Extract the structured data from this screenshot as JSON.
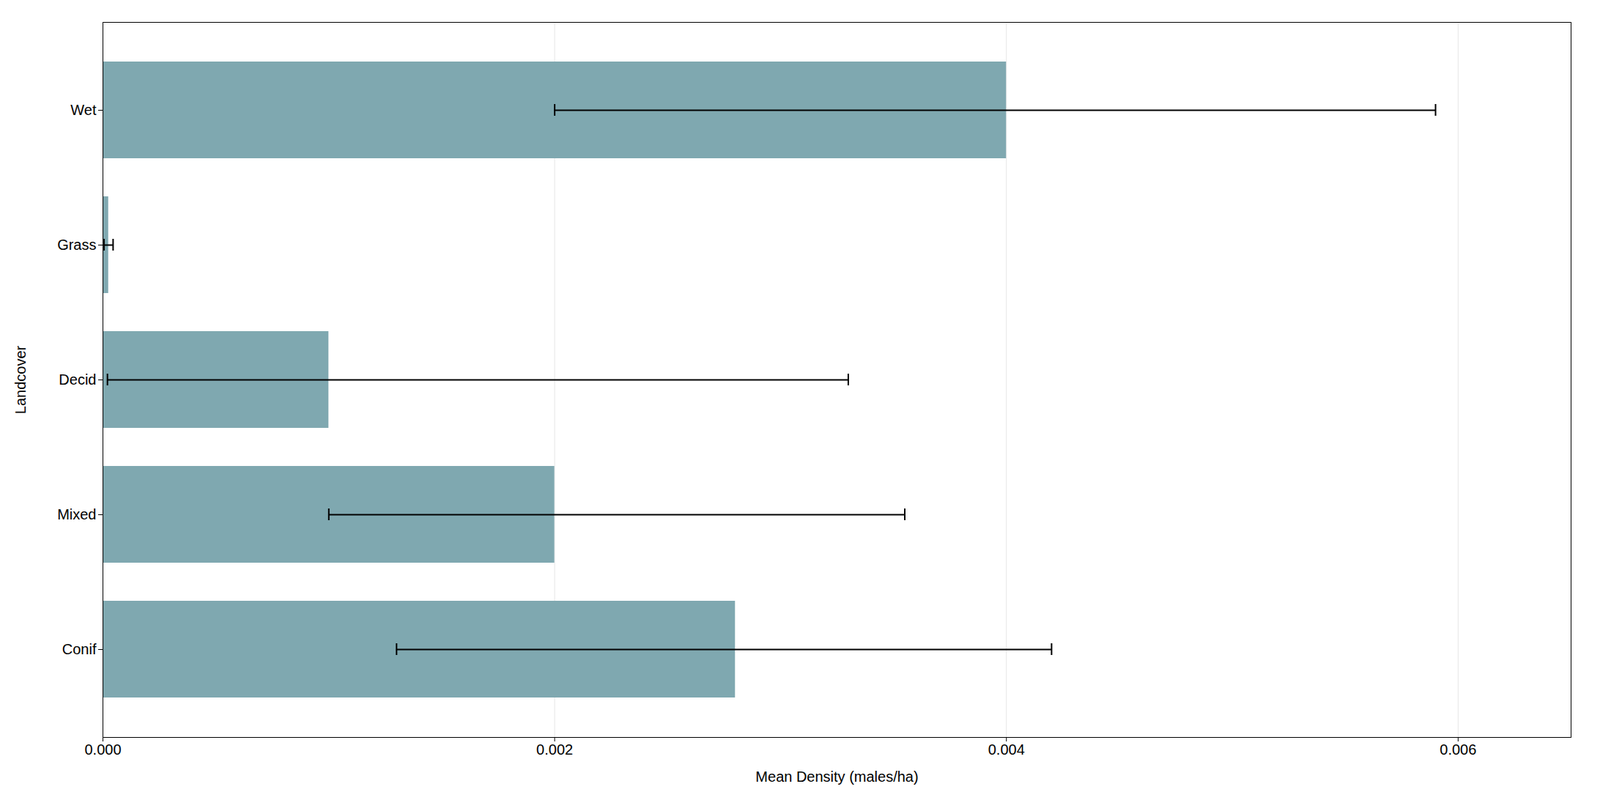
{
  "chart_data": {
    "type": "bar",
    "orientation": "horizontal",
    "categories": [
      "Conif",
      "Mixed",
      "Decid",
      "Grass",
      "Wet"
    ],
    "values": [
      0.0028,
      0.002,
      0.001,
      2.5e-05,
      0.004
    ],
    "error_low": [
      0.0013,
      0.001,
      2e-05,
      5e-06,
      0.002
    ],
    "error_high": [
      0.0042,
      0.00355,
      0.0033,
      4.5e-05,
      0.0059
    ],
    "color": "#7FA8B0",
    "xlabel": "Mean Density (males/ha)",
    "ylabel": "Landcover",
    "xlim": [
      0,
      0.0065
    ],
    "xticks": [
      {
        "value": 0.0,
        "label": "0.000"
      },
      {
        "value": 0.002,
        "label": "0.002"
      },
      {
        "value": 0.004,
        "label": "0.004"
      },
      {
        "value": 0.006,
        "label": "0.006"
      }
    ],
    "grid": true
  }
}
